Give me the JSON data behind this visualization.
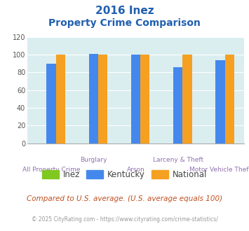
{
  "title_line1": "2016 Inez",
  "title_line2": "Property Crime Comparison",
  "title_color": "#2060b0",
  "group_labels_top": [
    "",
    "Burglary",
    "",
    "Larceny & Theft",
    ""
  ],
  "group_labels_bot": [
    "All Property Crime",
    "",
    "Arson",
    "",
    "Motor Vehicle Theft"
  ],
  "inez_values": [
    0,
    0,
    0,
    0,
    0
  ],
  "kentucky_values": [
    90,
    101,
    100,
    86,
    94
  ],
  "national_values": [
    100,
    100,
    100,
    100,
    100
  ],
  "inez_color": "#80c820",
  "kentucky_color": "#4488ee",
  "national_color": "#f5a020",
  "bg_color": "#daeef0",
  "ylim": [
    0,
    120
  ],
  "yticks": [
    0,
    20,
    40,
    60,
    80,
    100,
    120
  ],
  "legend_labels": [
    "Inez",
    "Kentucky",
    "National"
  ],
  "footnote1": "Compared to U.S. average. (U.S. average equals 100)",
  "footnote2": "© 2025 CityRating.com - https://www.cityrating.com/crime-statistics/",
  "footnote1_color": "#c05020",
  "footnote2_color": "#999999",
  "xlabel_color": "#9070b0",
  "grid_color": "#ffffff",
  "bar_width": 0.22
}
